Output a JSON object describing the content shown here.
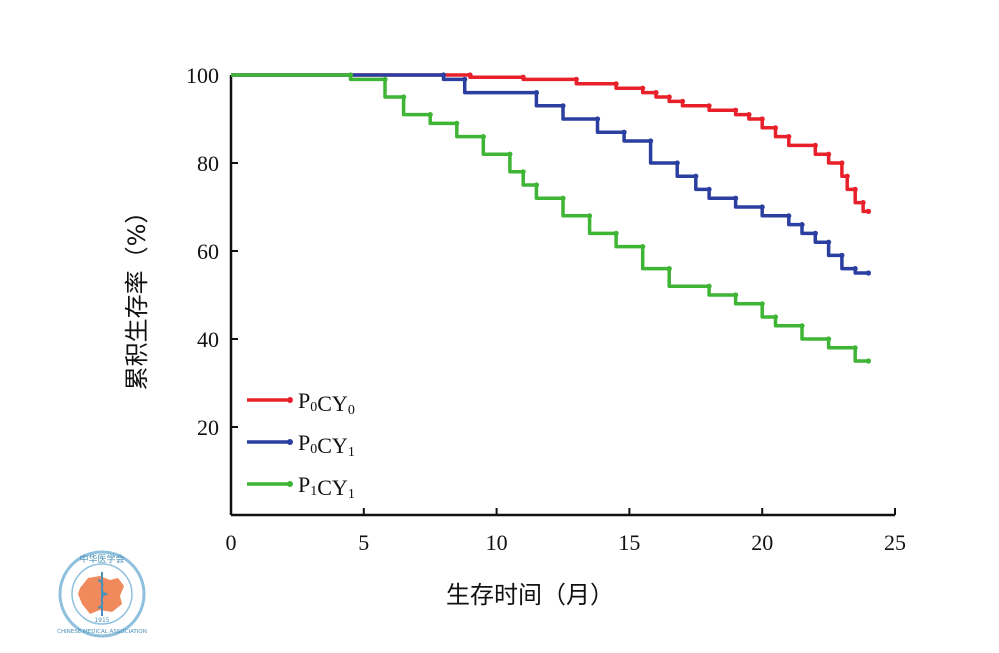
{
  "chart_data": {
    "type": "line",
    "xlabel": "生存时间（月）",
    "ylabel": "累积生存率（%）",
    "xlim": [
      0,
      25
    ],
    "ylim": [
      0,
      100
    ],
    "xticks": [
      0,
      5,
      10,
      15,
      20,
      25
    ],
    "yticks": [
      20,
      40,
      60,
      80,
      100
    ],
    "legend_position": "bottom-left",
    "grid": false,
    "series": [
      {
        "name": "P0CY0",
        "legend": {
          "p": "P",
          "s1": "0",
          "cy": "CY",
          "s2": "0"
        },
        "color": "#e8202a",
        "points": [
          [
            0,
            100
          ],
          [
            9,
            100
          ],
          [
            9,
            99.5
          ],
          [
            11,
            99.5
          ],
          [
            11,
            99
          ],
          [
            13,
            99
          ],
          [
            13,
            98
          ],
          [
            14.5,
            98
          ],
          [
            14.5,
            97
          ],
          [
            15.5,
            97
          ],
          [
            15.5,
            96
          ],
          [
            16,
            96
          ],
          [
            16,
            95
          ],
          [
            16.5,
            95
          ],
          [
            16.5,
            94
          ],
          [
            17,
            94
          ],
          [
            17,
            93
          ],
          [
            18,
            93
          ],
          [
            18,
            92
          ],
          [
            19,
            92
          ],
          [
            19,
            91
          ],
          [
            19.5,
            91
          ],
          [
            19.5,
            90
          ],
          [
            20,
            90
          ],
          [
            20,
            88
          ],
          [
            20.5,
            88
          ],
          [
            20.5,
            86
          ],
          [
            21,
            86
          ],
          [
            21,
            84
          ],
          [
            22,
            84
          ],
          [
            22,
            82
          ],
          [
            22.5,
            82
          ],
          [
            22.5,
            80
          ],
          [
            23,
            80
          ],
          [
            23,
            77
          ],
          [
            23.2,
            77
          ],
          [
            23.2,
            74
          ],
          [
            23.5,
            74
          ],
          [
            23.5,
            71
          ],
          [
            23.8,
            71
          ],
          [
            23.8,
            69
          ],
          [
            24,
            69
          ]
        ]
      },
      {
        "name": "P0CY1",
        "legend": {
          "p": "P",
          "s1": "0",
          "cy": "CY",
          "s2": "1"
        },
        "color": "#2b3fa0",
        "points": [
          [
            0,
            100
          ],
          [
            8,
            100
          ],
          [
            8,
            99
          ],
          [
            8.8,
            99
          ],
          [
            8.8,
            96
          ],
          [
            11.5,
            96
          ],
          [
            11.5,
            93
          ],
          [
            12.5,
            93
          ],
          [
            12.5,
            90
          ],
          [
            13.8,
            90
          ],
          [
            13.8,
            87
          ],
          [
            14.8,
            87
          ],
          [
            14.8,
            85
          ],
          [
            15.8,
            85
          ],
          [
            15.8,
            80
          ],
          [
            16.8,
            80
          ],
          [
            16.8,
            77
          ],
          [
            17.5,
            77
          ],
          [
            17.5,
            74
          ],
          [
            18,
            74
          ],
          [
            18,
            72
          ],
          [
            19,
            72
          ],
          [
            19,
            70
          ],
          [
            20,
            70
          ],
          [
            20,
            68
          ],
          [
            21,
            68
          ],
          [
            21,
            66
          ],
          [
            21.5,
            66
          ],
          [
            21.5,
            64
          ],
          [
            22,
            64
          ],
          [
            22,
            62
          ],
          [
            22.5,
            62
          ],
          [
            22.5,
            59
          ],
          [
            23,
            59
          ],
          [
            23,
            56
          ],
          [
            23.5,
            56
          ],
          [
            23.5,
            55
          ],
          [
            24,
            55
          ]
        ]
      },
      {
        "name": "P1CY1",
        "legend": {
          "p": "P",
          "s1": "1",
          "cy": "CY",
          "s2": "1"
        },
        "color": "#3fb535",
        "points": [
          [
            0,
            100
          ],
          [
            4.5,
            100
          ],
          [
            4.5,
            99
          ],
          [
            5.8,
            99
          ],
          [
            5.8,
            95
          ],
          [
            6.5,
            95
          ],
          [
            6.5,
            91
          ],
          [
            7.5,
            91
          ],
          [
            7.5,
            89
          ],
          [
            8.5,
            89
          ],
          [
            8.5,
            86
          ],
          [
            9.5,
            86
          ],
          [
            9.5,
            82
          ],
          [
            10.5,
            82
          ],
          [
            10.5,
            78
          ],
          [
            11,
            78
          ],
          [
            11,
            75
          ],
          [
            11.5,
            75
          ],
          [
            11.5,
            72
          ],
          [
            12.5,
            72
          ],
          [
            12.5,
            68
          ],
          [
            13.5,
            68
          ],
          [
            13.5,
            64
          ],
          [
            14.5,
            64
          ],
          [
            14.5,
            61
          ],
          [
            15.5,
            61
          ],
          [
            15.5,
            56
          ],
          [
            16.5,
            56
          ],
          [
            16.5,
            52
          ],
          [
            18,
            52
          ],
          [
            18,
            50
          ],
          [
            19,
            50
          ],
          [
            19,
            48
          ],
          [
            20,
            48
          ],
          [
            20,
            45
          ],
          [
            20.5,
            45
          ],
          [
            20.5,
            43
          ],
          [
            21.5,
            43
          ],
          [
            21.5,
            40
          ],
          [
            22.5,
            40
          ],
          [
            22.5,
            38
          ],
          [
            23.5,
            38
          ],
          [
            23.5,
            35
          ],
          [
            24,
            35
          ]
        ]
      }
    ]
  },
  "logo": {
    "text_top": "中华医学会",
    "text_bottom": "CHINESE MEDICAL ASSOCIATION",
    "year": "1915"
  }
}
